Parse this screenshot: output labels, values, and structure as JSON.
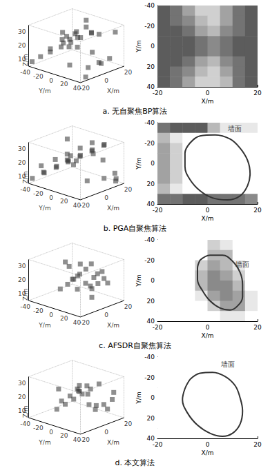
{
  "chart_data": [
    {
      "type": "scatter3d",
      "xlabel": "X/m",
      "ylabel": "Y/m",
      "zlabel": "Z/m",
      "color": "#333333",
      "xlim": [
        -20,
        20
      ],
      "xticks": [
        -20,
        0,
        20
      ],
      "ylim": [
        -40,
        40
      ],
      "yticks": [
        -40,
        -20,
        0,
        20,
        40
      ],
      "zlim": [
        5,
        35
      ],
      "zticks": [
        10,
        20,
        30
      ],
      "x": [
        -18,
        -15,
        -12,
        -8,
        -5,
        -2,
        2,
        5,
        8,
        12,
        15,
        18,
        -16,
        -10,
        -4,
        0,
        4,
        10,
        14,
        18,
        -18,
        -12,
        -6,
        0,
        6,
        12,
        18,
        -14,
        -2,
        10
      ],
      "y": [
        -38,
        -30,
        -20,
        -10,
        0,
        10,
        20,
        30,
        38,
        -35,
        -25,
        -15,
        5,
        15,
        25,
        35,
        -5,
        -38,
        0,
        30,
        20,
        10,
        -30,
        -20,
        -8,
        15,
        -15,
        38,
        28,
        -28
      ],
      "z": [
        8,
        12,
        16,
        20,
        24,
        28,
        32,
        10,
        14,
        18,
        22,
        26,
        30,
        34,
        9,
        13,
        17,
        21,
        25,
        29,
        33,
        11,
        15,
        19,
        23,
        27,
        31,
        7,
        20,
        12
      ]
    },
    {
      "type": "heatmap",
      "xlabel": "X/m",
      "ylabel": "Y/m",
      "xlim": [
        -20,
        20
      ],
      "xticks": [
        -20,
        0,
        20
      ],
      "ylim": [
        40,
        -40
      ],
      "yticks": [
        -40,
        -20,
        0,
        20,
        40
      ],
      "x_edges": [
        -20,
        -15,
        -10,
        -5,
        0,
        5,
        10,
        15,
        20
      ],
      "y_edges": [
        -40,
        -30,
        -20,
        -10,
        0,
        10,
        20,
        30,
        40
      ],
      "intensity_lim": [
        0,
        9
      ],
      "cells": [
        [
          7,
          6,
          4,
          2,
          2,
          4,
          6,
          7
        ],
        [
          7,
          6,
          5,
          3,
          2,
          4,
          6,
          7
        ],
        [
          7,
          7,
          6,
          4,
          3,
          5,
          6,
          7
        ],
        [
          7,
          7,
          7,
          6,
          5,
          6,
          7,
          7
        ],
        [
          7,
          7,
          7,
          6,
          5,
          6,
          7,
          7
        ],
        [
          7,
          7,
          6,
          4,
          3,
          5,
          6,
          7
        ],
        [
          7,
          6,
          5,
          3,
          2,
          4,
          6,
          7
        ],
        [
          7,
          6,
          4,
          2,
          2,
          3,
          6,
          7
        ]
      ]
    },
    {
      "type": "scatter3d",
      "xlabel": "X/m",
      "ylabel": "Y/m",
      "zlabel": "Z/m",
      "color": "#333333",
      "xlim": [
        -20,
        20
      ],
      "xticks": [
        -20,
        0,
        20
      ],
      "ylim": [
        -40,
        40
      ],
      "yticks": [
        -40,
        -20,
        0,
        20,
        40
      ],
      "zlim": [
        5,
        35
      ],
      "zticks": [
        10,
        20,
        30
      ],
      "x": [
        -19,
        -14,
        -9,
        -4,
        1,
        6,
        11,
        16,
        19,
        -17,
        -11,
        -6,
        -1,
        4,
        9,
        14,
        18,
        -15,
        -8,
        -3,
        3,
        8,
        13,
        17,
        -12,
        0,
        12,
        -18,
        6,
        15
      ],
      "y": [
        -36,
        -26,
        -16,
        -6,
        4,
        14,
        24,
        34,
        -32,
        -22,
        -12,
        -2,
        8,
        18,
        28,
        38,
        -39,
        -29,
        -19,
        -9,
        1,
        11,
        21,
        31,
        37,
        -14,
        6,
        26,
        -24,
        16
      ],
      "z": [
        9,
        13,
        17,
        21,
        25,
        29,
        33,
        7,
        11,
        15,
        19,
        23,
        27,
        31,
        35,
        10,
        14,
        18,
        22,
        26,
        30,
        34,
        8,
        12,
        16,
        20,
        24,
        28,
        32,
        20
      ]
    },
    {
      "type": "heatmap",
      "xlabel": "X/m",
      "ylabel": "Y/m",
      "xlim": [
        -20,
        20
      ],
      "xticks": [
        -20,
        0,
        20
      ],
      "ylim": [
        40,
        -40
      ],
      "yticks": [
        -40,
        -20,
        0,
        20,
        40
      ],
      "x_edges": [
        -20,
        -15,
        -10,
        -5,
        0,
        5,
        10,
        15,
        20
      ],
      "y_edges": [
        -40,
        -30,
        -20,
        -10,
        0,
        10,
        20,
        30,
        40
      ],
      "intensity_lim": [
        0,
        9
      ],
      "cells": [
        [
          6,
          7,
          7,
          7,
          3,
          1,
          1,
          1
        ],
        [
          3,
          1,
          0,
          0,
          0,
          0,
          0,
          0
        ],
        [
          4,
          2,
          0,
          0,
          0,
          0,
          0,
          0
        ],
        [
          4,
          2,
          0,
          0,
          0,
          0,
          0,
          0
        ],
        [
          4,
          2,
          0,
          0,
          0,
          0,
          0,
          0
        ],
        [
          4,
          2,
          0,
          0,
          0,
          0,
          0,
          0
        ],
        [
          3,
          1,
          0,
          0,
          0,
          0,
          0,
          0
        ],
        [
          6,
          6,
          7,
          7,
          6,
          6,
          6,
          5
        ]
      ],
      "ellipse": {
        "x": [
          -7,
          -3,
          3,
          9,
          13,
          16,
          17,
          16,
          13,
          8,
          2,
          -3,
          -7,
          -9,
          -9,
          -7
        ],
        "y": [
          -20,
          -27,
          -28,
          -24,
          -15,
          -3,
          10,
          22,
          32,
          36,
          34,
          27,
          16,
          3,
          -10,
          -20
        ]
      },
      "annotation": {
        "text": "墙面",
        "x": 11,
        "y": -34
      }
    },
    {
      "type": "scatter3d",
      "xlabel": "X/m",
      "ylabel": "Y/m",
      "zlabel": "Z/m",
      "color": "#333333",
      "xlim": [
        -20,
        20
      ],
      "xticks": [
        -20,
        0,
        20
      ],
      "ylim": [
        -40,
        40
      ],
      "yticks": [
        -40,
        -20,
        0,
        20,
        40
      ],
      "zlim": [
        5,
        35
      ],
      "zticks": [
        10,
        20,
        30
      ],
      "x": [
        -4,
        -2,
        0,
        2,
        4,
        6,
        8,
        10,
        12,
        -3,
        1,
        5,
        9,
        13,
        3,
        7,
        11,
        -6,
        15,
        0,
        6,
        10
      ],
      "y": [
        -18,
        -10,
        -4,
        2,
        8,
        14,
        20,
        26,
        -14,
        -6,
        0,
        6,
        12,
        18,
        -22,
        10,
        30,
        4,
        -2,
        24,
        -8,
        16
      ],
      "z": [
        12,
        16,
        20,
        24,
        28,
        14,
        18,
        22,
        26,
        30,
        13,
        17,
        21,
        25,
        29,
        15,
        19,
        23,
        27,
        11,
        20,
        24
      ]
    },
    {
      "type": "heatmap",
      "xlabel": "X/m",
      "ylabel": "Y/m",
      "xlim": [
        -20,
        20
      ],
      "xticks": [
        -20,
        0,
        20
      ],
      "ylim": [
        40,
        -40
      ],
      "yticks": [
        -40,
        -20,
        0,
        20,
        40
      ],
      "x_edges": [
        -20,
        -15,
        -10,
        -5,
        0,
        5,
        10,
        15,
        20
      ],
      "y_edges": [
        -40,
        -30,
        -20,
        -10,
        0,
        10,
        20,
        30,
        40
      ],
      "intensity_lim": [
        0,
        9
      ],
      "cells": [
        [
          0,
          0,
          0,
          0,
          2,
          1,
          0,
          0
        ],
        [
          0,
          0,
          0,
          0,
          3,
          3,
          0,
          0
        ],
        [
          0,
          0,
          0,
          2,
          4,
          3,
          1,
          0
        ],
        [
          0,
          0,
          0,
          3,
          5,
          4,
          2,
          0
        ],
        [
          0,
          0,
          0,
          3,
          5,
          5,
          3,
          0
        ],
        [
          0,
          0,
          0,
          1,
          4,
          5,
          4,
          1
        ],
        [
          0,
          0,
          0,
          0,
          2,
          4,
          4,
          1
        ],
        [
          0,
          0,
          0,
          0,
          0,
          1,
          1,
          0
        ]
      ],
      "ellipse": {
        "x": [
          -3,
          1,
          6,
          10,
          13,
          14,
          14,
          12,
          9,
          5,
          1,
          -2,
          -4,
          -4,
          -3
        ],
        "y": [
          -20,
          -25,
          -25,
          -19,
          -8,
          4,
          16,
          25,
          29,
          27,
          20,
          10,
          -1,
          -12,
          -20
        ]
      },
      "annotation": {
        "text": "墙面",
        "x": 14,
        "y": -16
      }
    },
    {
      "type": "scatter3d",
      "xlabel": "X/m",
      "ylabel": "Y/m",
      "zlabel": "Z/m",
      "color": "#333333",
      "xlim": [
        -20,
        20
      ],
      "xticks": [
        -20,
        0,
        20
      ],
      "ylim": [
        -40,
        40
      ],
      "yticks": [
        -40,
        -20,
        0,
        20,
        40
      ],
      "zlim": [
        5,
        35
      ],
      "zticks": [
        10,
        20,
        30
      ],
      "x": [
        -6,
        -3,
        0,
        3,
        6,
        9,
        12,
        -4,
        -1,
        2,
        5,
        8,
        11,
        14,
        -2,
        4,
        10,
        1,
        7,
        13,
        -5,
        9
      ],
      "y": [
        -20,
        -12,
        -4,
        4,
        12,
        20,
        28,
        -16,
        -8,
        0,
        8,
        16,
        24,
        32,
        -24,
        -2,
        14,
        18,
        6,
        36,
        10,
        -10
      ],
      "z": [
        10,
        14,
        18,
        22,
        26,
        30,
        12,
        16,
        20,
        24,
        28,
        11,
        15,
        19,
        23,
        27,
        13,
        17,
        21,
        25,
        29,
        20
      ]
    },
    {
      "type": "heatmap",
      "xlabel": "X/m",
      "ylabel": "Y/m",
      "xlim": [
        -20,
        20
      ],
      "xticks": [
        -20,
        0,
        20
      ],
      "ylim": [
        40,
        -40
      ],
      "yticks": [
        -40,
        -20,
        0,
        20,
        40
      ],
      "x_edges": [
        -20,
        -15,
        -10,
        -5,
        0,
        5,
        10,
        15,
        20
      ],
      "y_edges": [
        -40,
        -30,
        -20,
        -10,
        0,
        10,
        20,
        30,
        40
      ],
      "intensity_lim": [
        0,
        9
      ],
      "cells": [
        [
          0,
          0,
          0,
          0,
          0,
          0,
          0,
          0
        ],
        [
          0,
          0,
          0,
          0,
          0,
          0,
          0,
          0
        ],
        [
          0,
          0,
          0,
          0,
          0,
          0,
          0,
          0
        ],
        [
          0,
          0,
          0,
          0,
          0,
          0,
          0,
          0
        ],
        [
          0,
          0,
          0,
          0,
          0,
          0,
          0,
          0
        ],
        [
          0,
          0,
          0,
          0,
          0,
          0,
          0,
          0
        ],
        [
          0,
          0,
          0,
          0,
          0,
          0,
          0,
          0
        ],
        [
          0,
          0,
          0,
          0,
          0,
          0,
          0,
          0
        ]
      ],
      "ellipse": {
        "x": [
          -7,
          -3,
          2,
          7,
          11,
          13,
          14,
          13,
          10,
          6,
          1,
          -4,
          -8,
          -10,
          -9,
          -7
        ],
        "y": [
          -18,
          -24,
          -25,
          -21,
          -12,
          0,
          13,
          26,
          35,
          38,
          35,
          27,
          15,
          2,
          -9,
          -18
        ]
      },
      "annotation": {
        "text": "墙面",
        "x": 8,
        "y": -33
      }
    }
  ],
  "captions": [
    "a. 无自聚焦BP算法",
    "b. PGA自聚焦算法",
    "c. AFSDR自聚焦算法",
    "d. 本文算法"
  ]
}
